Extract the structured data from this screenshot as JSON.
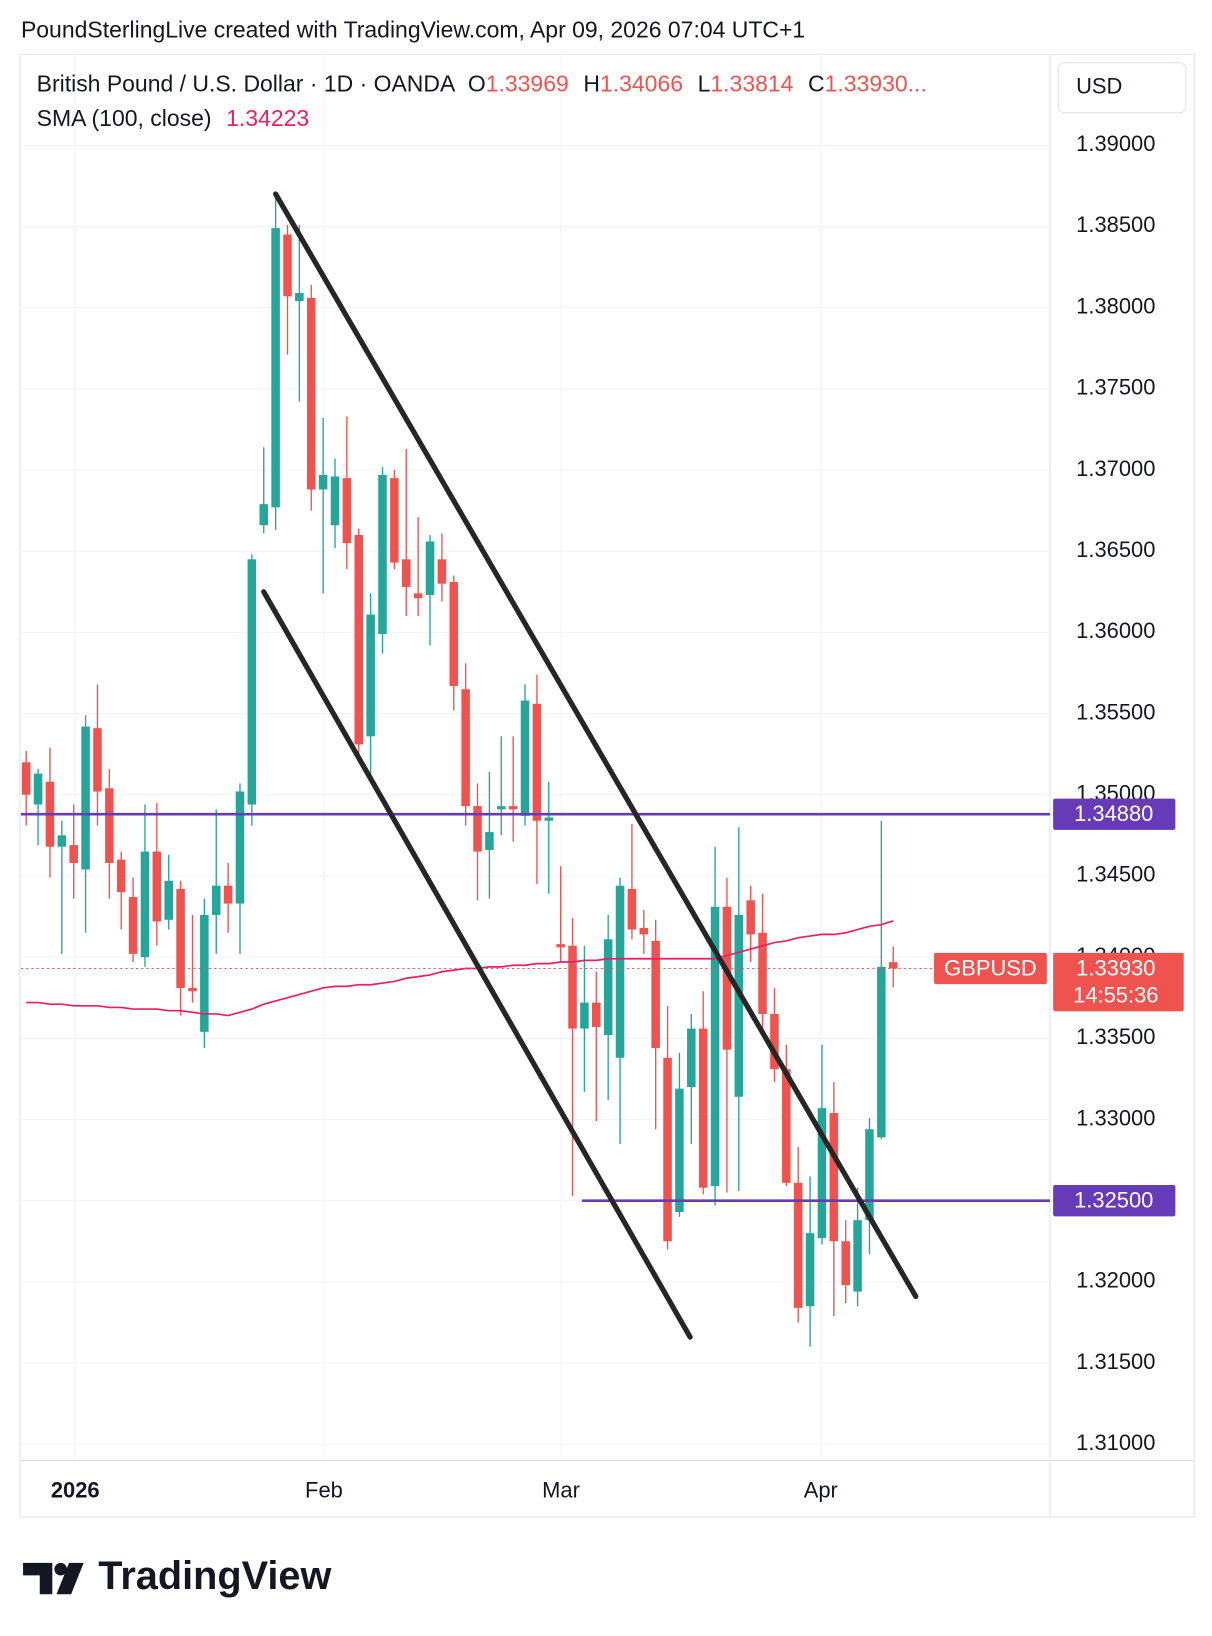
{
  "chart_data": {
    "type": "candlestick",
    "header": "PoundSterlingLive created with TradingView.com, Apr 09, 2026 07:04 UTC+1",
    "symbol": "British Pound / U.S. Dollar · 1D · OANDA",
    "ohlc_legend": [
      {
        "key": "O",
        "text": "1.33969"
      },
      {
        "key": "H",
        "text": "1.34066"
      },
      {
        "key": "L",
        "text": "1.33814"
      },
      {
        "key": "C",
        "text": "1.33930..."
      }
    ],
    "currency": "USD",
    "up_color": "#26a69a",
    "down_color": "#ef5350",
    "series": [
      {
        "name": "GBPUSD",
        "open": [
          1.352,
          1.3494,
          1.3508,
          1.3468,
          1.3469,
          1.3454,
          1.3541,
          1.3504,
          1.346,
          1.3437,
          1.34,
          1.3465,
          1.3423,
          1.3442,
          1.3381,
          1.3354,
          1.3426,
          1.3444,
          1.3433,
          1.3494,
          1.3666,
          1.3677,
          1.3845,
          1.3804,
          1.3806,
          1.3688,
          1.3666,
          1.3695,
          1.366,
          1.3536,
          1.3599,
          1.3695,
          1.3645,
          1.3624,
          1.3623,
          1.3645,
          1.3631,
          1.3565,
          1.3493,
          1.3466,
          1.3491,
          1.3493,
          1.3487,
          1.3556,
          1.3484,
          1.3408,
          1.3407,
          1.3356,
          1.3372,
          1.3352,
          1.3338,
          1.3442,
          1.3418,
          1.341,
          1.3338,
          1.3243,
          1.332,
          1.3356,
          1.3259,
          1.3431,
          1.3314,
          1.3435,
          1.3415,
          1.3365,
          1.3331,
          1.3261,
          1.3185,
          1.3227,
          1.3304,
          1.3225,
          1.3194,
          1.3238,
          1.3289,
          1.33969
        ],
        "high": [
          1.3527,
          1.3516,
          1.3529,
          1.3484,
          1.3494,
          1.3549,
          1.3568,
          1.3516,
          1.3465,
          1.3449,
          1.3494,
          1.3495,
          1.3463,
          1.3447,
          1.3426,
          1.3436,
          1.3491,
          1.3458,
          1.3507,
          1.3648,
          1.3714,
          1.387,
          1.3851,
          1.3851,
          1.3814,
          1.3732,
          1.3707,
          1.3733,
          1.3664,
          1.3624,
          1.3702,
          1.37,
          1.3713,
          1.3671,
          1.366,
          1.3661,
          1.3635,
          1.3581,
          1.3507,
          1.3514,
          1.3536,
          1.3536,
          1.3568,
          1.3574,
          1.3508,
          1.3456,
          1.3424,
          1.3407,
          1.3391,
          1.3426,
          1.3449,
          1.3482,
          1.3429,
          1.3423,
          1.337,
          1.3341,
          1.3365,
          1.3379,
          1.3468,
          1.3449,
          1.348,
          1.3444,
          1.3439,
          1.3381,
          1.3346,
          1.3283,
          1.3265,
          1.3346,
          1.3323,
          1.3238,
          1.3258,
          1.3301,
          1.3484,
          1.34066
        ],
        "low": [
          1.3481,
          1.3469,
          1.3449,
          1.3402,
          1.3436,
          1.3415,
          1.3481,
          1.3436,
          1.3417,
          1.3397,
          1.3394,
          1.3407,
          1.3417,
          1.3364,
          1.3372,
          1.3344,
          1.3402,
          1.3415,
          1.3402,
          1.3481,
          1.3661,
          1.3663,
          1.3771,
          1.3742,
          1.3675,
          1.3624,
          1.3652,
          1.3639,
          1.3523,
          1.351,
          1.3587,
          1.3639,
          1.361,
          1.361,
          1.3592,
          1.3619,
          1.3552,
          1.3481,
          1.3435,
          1.3436,
          1.3475,
          1.3471,
          1.3481,
          1.3445,
          1.3439,
          1.3397,
          1.3253,
          1.3317,
          1.3299,
          1.3312,
          1.3285,
          1.3411,
          1.3402,
          1.3294,
          1.322,
          1.324,
          1.3285,
          1.3254,
          1.3247,
          1.3255,
          1.3256,
          1.3397,
          1.3356,
          1.3323,
          1.3259,
          1.3175,
          1.316,
          1.3223,
          1.3179,
          1.3187,
          1.3185,
          1.3217,
          1.3288,
          1.33814
        ],
        "close": [
          1.35,
          1.3513,
          1.3468,
          1.3475,
          1.3458,
          1.3542,
          1.3502,
          1.3458,
          1.344,
          1.3402,
          1.3465,
          1.3422,
          1.3447,
          1.3381,
          1.3379,
          1.3426,
          1.3444,
          1.3433,
          1.3502,
          1.3645,
          1.3679,
          1.3849,
          1.3807,
          1.3809,
          1.3688,
          1.3697,
          1.3696,
          1.3655,
          1.3531,
          1.3611,
          1.3697,
          1.3643,
          1.3628,
          1.3621,
          1.3656,
          1.363,
          1.3567,
          1.3493,
          1.3465,
          1.3477,
          1.3493,
          1.3491,
          1.3558,
          1.3484,
          1.3486,
          1.3406,
          1.3356,
          1.3372,
          1.3357,
          1.3411,
          1.3444,
          1.3417,
          1.3414,
          1.3344,
          1.3225,
          1.3319,
          1.3356,
          1.3258,
          1.3431,
          1.3343,
          1.3426,
          1.3414,
          1.3365,
          1.3331,
          1.3261,
          1.3184,
          1.323,
          1.3307,
          1.3225,
          1.3198,
          1.3238,
          1.3294,
          1.3394,
          1.3393
        ]
      }
    ],
    "indicator": {
      "name": "SMA (100, close)",
      "text": "1.34223",
      "color": "#e91e63",
      "values": [
        1.3372,
        1.3372,
        1.3371,
        1.3371,
        1.337,
        1.337,
        1.337,
        1.3369,
        1.3369,
        1.3368,
        1.3368,
        1.3368,
        1.3367,
        1.3367,
        1.3366,
        1.3365,
        1.3365,
        1.3364,
        1.3366,
        1.3368,
        1.3371,
        1.3373,
        1.3375,
        1.3377,
        1.3379,
        1.3381,
        1.3382,
        1.3382,
        1.3383,
        1.3383,
        1.3384,
        1.3385,
        1.3387,
        1.3388,
        1.3389,
        1.3391,
        1.3392,
        1.3393,
        1.3393,
        1.3394,
        1.3394,
        1.3395,
        1.3395,
        1.3396,
        1.3396,
        1.3397,
        1.3397,
        1.3398,
        1.3398,
        1.3399,
        1.3399,
        1.3399,
        1.3399,
        1.3399,
        1.3399,
        1.3399,
        1.3399,
        1.3399,
        1.3399,
        1.3401,
        1.3403,
        1.3405,
        1.3407,
        1.3409,
        1.341,
        1.3412,
        1.3413,
        1.3414,
        1.3414,
        1.3415,
        1.3417,
        1.3419,
        1.342,
        1.34223
      ]
    },
    "xlim": [
      -0.44,
      86.2
    ],
    "ylim": [
      1.309,
      1.3956
    ],
    "xticks": [
      {
        "value": 4.13,
        "label": "2026"
      },
      {
        "value": 25.07,
        "label": "Feb"
      },
      {
        "value": 45.03,
        "label": "Mar"
      },
      {
        "value": 66.9,
        "label": "Apr"
      }
    ],
    "yticks": [
      {
        "value": 1.31,
        "label": "1.31000"
      },
      {
        "value": 1.315,
        "label": "1.31500"
      },
      {
        "value": 1.32,
        "label": "1.32000"
      },
      {
        "value": 1.325,
        "label": "1.32500"
      },
      {
        "value": 1.33,
        "label": "1.33000"
      },
      {
        "value": 1.335,
        "label": "1.33500"
      },
      {
        "value": 1.34,
        "label": "1.34000"
      },
      {
        "value": 1.345,
        "label": "1.34500"
      },
      {
        "value": 1.35,
        "label": "1.35000"
      },
      {
        "value": 1.355,
        "label": "1.35500"
      },
      {
        "value": 1.36,
        "label": "1.36000"
      },
      {
        "value": 1.365,
        "label": "1.36500"
      },
      {
        "value": 1.37,
        "label": "1.37000"
      },
      {
        "value": 1.375,
        "label": "1.37500"
      },
      {
        "value": 1.38,
        "label": "1.38000"
      },
      {
        "value": 1.385,
        "label": "1.38500"
      },
      {
        "value": 1.39,
        "label": "1.39000"
      }
    ],
    "grid": true,
    "hlines": [
      {
        "value": 1.3488,
        "label": "1.34880",
        "color": "#673ab7"
      },
      {
        "value": 1.325,
        "label": "1.32500",
        "color": "#673ab7",
        "x_start": 46.8
      }
    ],
    "trendlines": [
      {
        "x": [
          21.0,
          74.9
        ],
        "y": [
          1.387,
          1.3191
        ],
        "color": "#262626"
      },
      {
        "x": [
          20.0,
          55.9
        ],
        "y": [
          1.3625,
          1.3166
        ],
        "color": "#262626"
      }
    ],
    "last_price": {
      "label": "1.33930",
      "countdown": "14:55:36"
    },
    "brand": "TradingView"
  }
}
